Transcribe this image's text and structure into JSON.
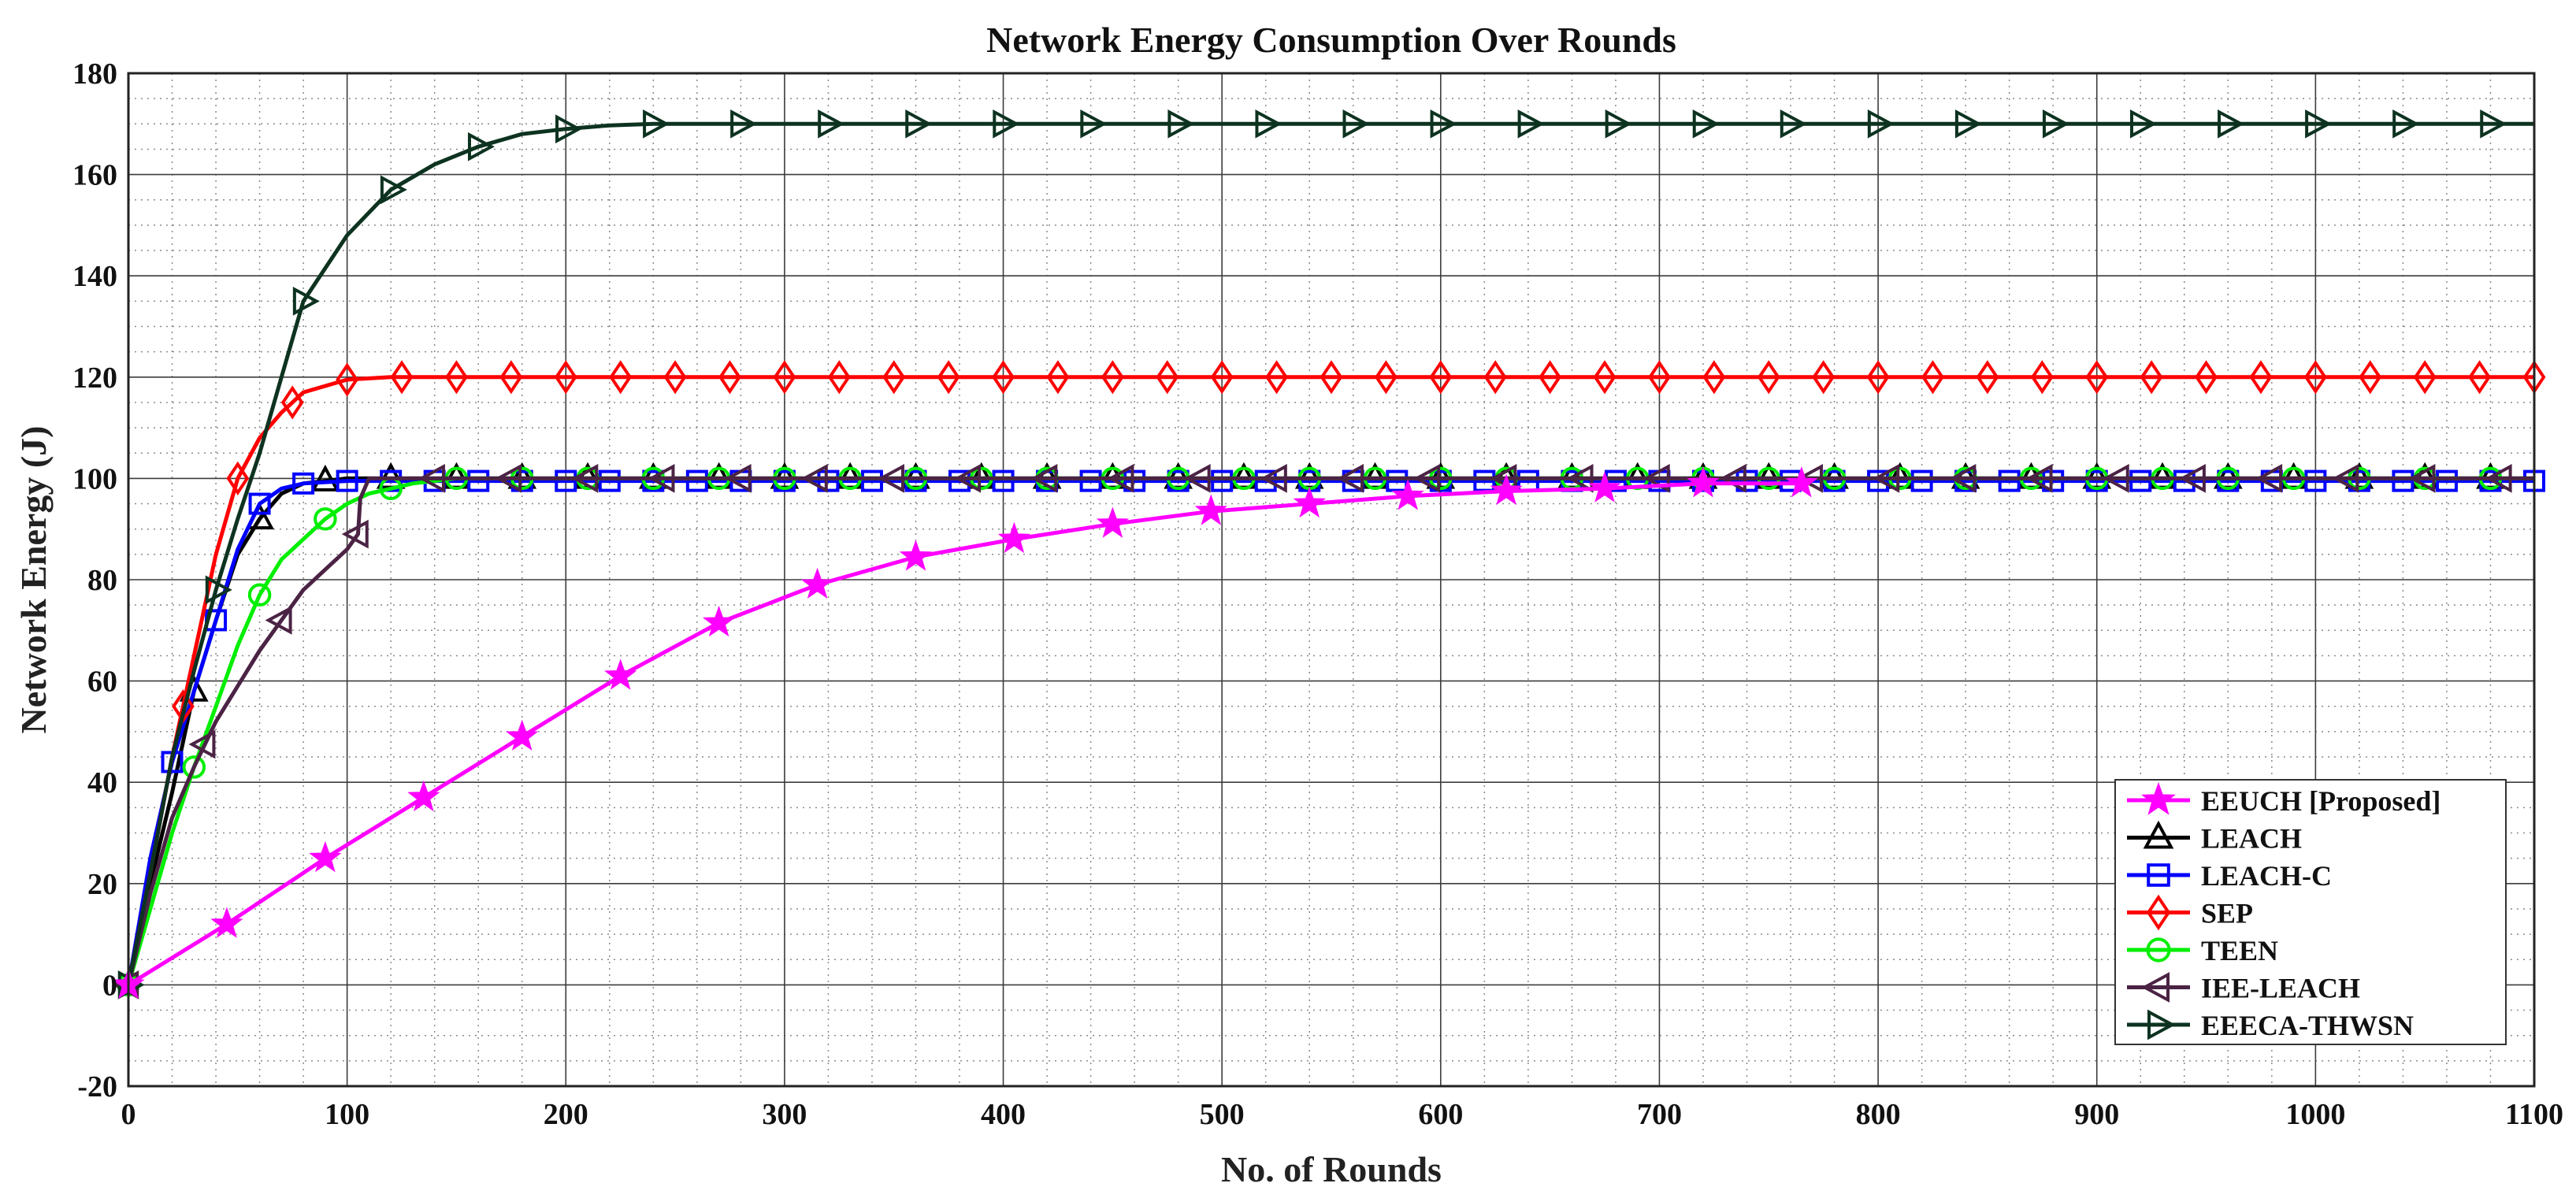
{
  "chart_data": {
    "type": "line",
    "title": "Network Energy Consumption Over Rounds",
    "xlabel": "No. of Rounds",
    "ylabel": "Network Energy (J)",
    "xlim": [
      0,
      1100
    ],
    "ylim": [
      -20,
      180
    ],
    "xticks": [
      0,
      100,
      200,
      300,
      400,
      500,
      600,
      700,
      800,
      900,
      1000,
      1100
    ],
    "yticks": [
      -20,
      0,
      20,
      40,
      60,
      80,
      100,
      120,
      140,
      160,
      180
    ],
    "grid": true,
    "legend_position": "bottom-right",
    "series": [
      {
        "name": "EEUCH [Proposed]",
        "color": "#ff00ff",
        "marker": "star",
        "x": [
          0,
          45,
          90,
          135,
          180,
          225,
          270,
          315,
          360,
          405,
          450,
          495,
          540,
          585,
          630,
          675,
          720,
          765
        ],
        "y": [
          0,
          12,
          25,
          37,
          49,
          61,
          71.5,
          79,
          84.5,
          88,
          91,
          93.5,
          95,
          96.5,
          97.5,
          98,
          99,
          99
        ]
      },
      {
        "name": "LEACH",
        "color": "#000000",
        "marker": "triangle-up",
        "x": [
          0,
          10,
          20,
          30,
          40,
          50,
          60,
          70,
          80,
          100,
          120,
          150,
          200,
          300,
          500,
          800,
          1100
        ],
        "y": [
          0,
          20,
          38,
          58,
          72,
          85,
          92,
          97,
          99,
          100,
          100,
          100,
          100,
          100,
          100,
          100,
          100
        ]
      },
      {
        "name": "LEACH-C",
        "color": "#0000ff",
        "marker": "square",
        "x": [
          0,
          10,
          20,
          30,
          40,
          50,
          60,
          70,
          80,
          100,
          120,
          150,
          200,
          300,
          500,
          800,
          1100
        ],
        "y": [
          0,
          25,
          44,
          58,
          72,
          86,
          95,
          98,
          99,
          99.5,
          99.5,
          99.5,
          99.5,
          99.5,
          99.5,
          99.5,
          99.5
        ]
      },
      {
        "name": "SEP",
        "color": "#ff0000",
        "marker": "diamond",
        "x": [
          0,
          10,
          20,
          30,
          40,
          50,
          60,
          70,
          80,
          100,
          120,
          150,
          200,
          300,
          500,
          800,
          1100
        ],
        "y": [
          0,
          22,
          45,
          65,
          85,
          100,
          108,
          113,
          117,
          119.5,
          120,
          120,
          120,
          120,
          120,
          120,
          120
        ]
      },
      {
        "name": "TEEN",
        "color": "#00ee00",
        "marker": "circle",
        "x": [
          0,
          10,
          20,
          30,
          40,
          50,
          60,
          70,
          80,
          90,
          100,
          110,
          120,
          130,
          150,
          200,
          300,
          500,
          800,
          1100
        ],
        "y": [
          0,
          15,
          30,
          43,
          55,
          67,
          77,
          84,
          88,
          92,
          95,
          97,
          98,
          99,
          100,
          100,
          100,
          100,
          100,
          100
        ]
      },
      {
        "name": "IEE-LEACH",
        "color": "#4b2344",
        "marker": "triangle-left",
        "x": [
          0,
          10,
          20,
          30,
          40,
          50,
          60,
          70,
          80,
          90,
          100,
          105,
          106,
          110,
          120,
          150,
          200,
          300,
          500,
          800,
          1100
        ],
        "y": [
          0,
          18,
          33,
          43,
          52,
          59,
          66,
          72,
          78,
          82,
          86,
          89,
          96,
          100,
          100,
          100,
          100,
          100,
          100,
          100,
          100
        ]
      },
      {
        "name": "EEECA-THWSN",
        "color": "#0d3320",
        "marker": "triangle-right",
        "x": [
          0,
          10,
          20,
          30,
          40,
          50,
          60,
          70,
          80,
          100,
          120,
          140,
          160,
          180,
          200,
          220,
          240,
          300,
          500,
          800,
          1100
        ],
        "y": [
          0,
          22,
          45,
          62,
          78,
          92,
          105,
          120,
          135,
          148,
          157,
          162,
          165.5,
          168,
          169,
          169.7,
          170,
          170,
          170,
          170,
          170
        ]
      }
    ]
  }
}
